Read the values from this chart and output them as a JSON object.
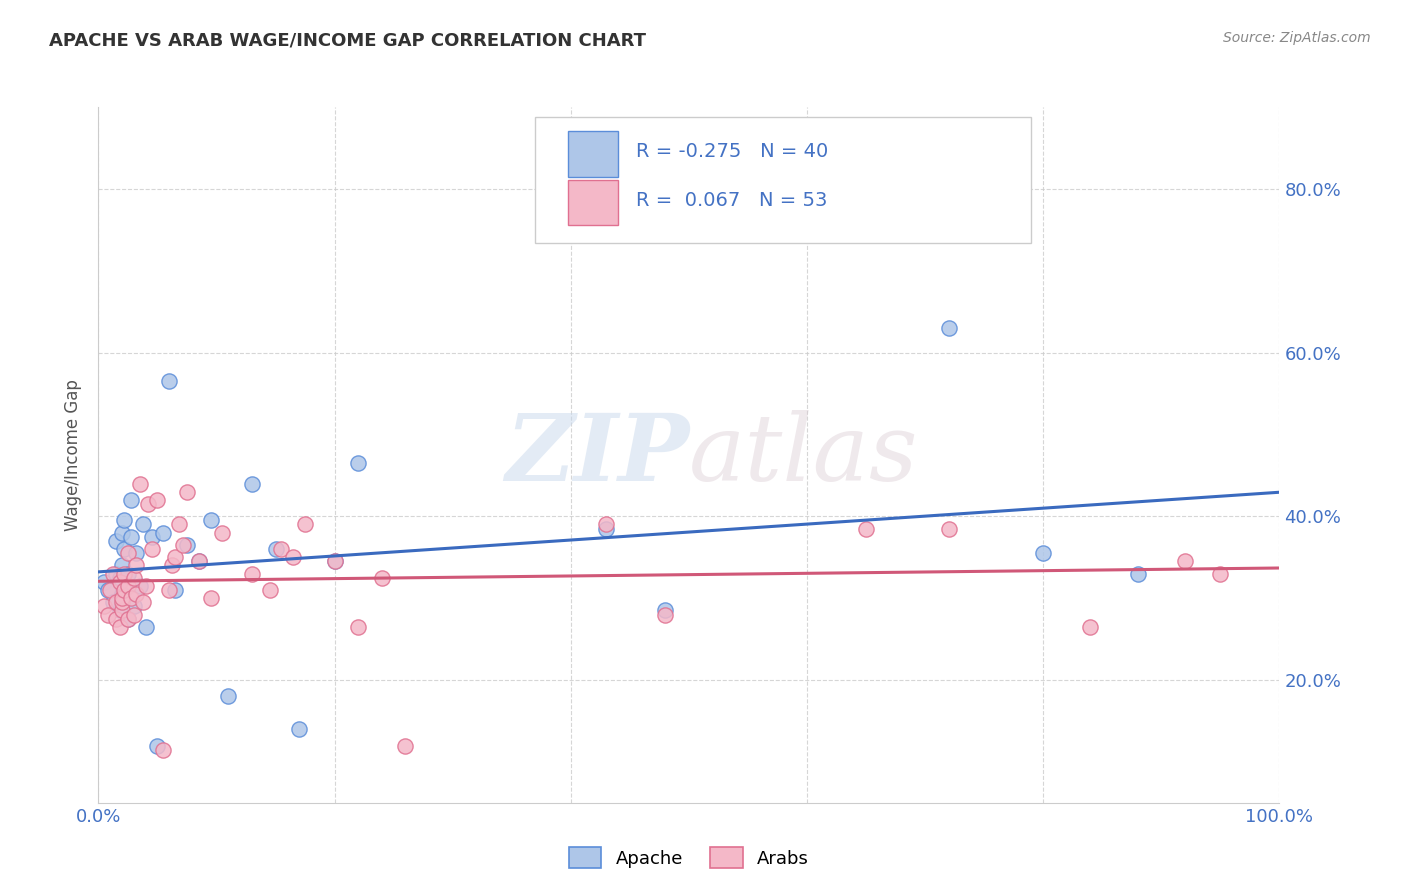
{
  "title": "APACHE VS ARAB WAGE/INCOME GAP CORRELATION CHART",
  "source": "Source: ZipAtlas.com",
  "ylabel": "Wage/Income Gap",
  "xlim": [
    0,
    1
  ],
  "ylim": [
    0.05,
    0.9
  ],
  "xticks": [
    0.0,
    0.2,
    0.4,
    0.6,
    0.8,
    1.0
  ],
  "yticks": [
    0.2,
    0.4,
    0.6,
    0.8
  ],
  "xtick_labels": [
    "0.0%",
    "",
    "",
    "",
    "",
    "100.0%"
  ],
  "ytick_labels": [
    "20.0%",
    "40.0%",
    "60.0%",
    "80.0%"
  ],
  "apache_color": "#aec6e8",
  "arab_color": "#f4b8c8",
  "apache_edge_color": "#5b8dd9",
  "arab_edge_color": "#e07090",
  "apache_line_color": "#3a6abf",
  "arab_line_color": "#d05878",
  "tick_label_color": "#4472c4",
  "title_color": "#333333",
  "source_color": "#888888",
  "legend_text_color": "#4472c4",
  "background_color": "#ffffff",
  "grid_color": "#cccccc",
  "watermark_color": "#d8e4f0",
  "apache_R": -0.275,
  "apache_N": 40,
  "arab_R": 0.067,
  "arab_N": 53,
  "apache_x": [
    0.005,
    0.008,
    0.012,
    0.015,
    0.015,
    0.018,
    0.018,
    0.02,
    0.02,
    0.02,
    0.022,
    0.022,
    0.025,
    0.025,
    0.028,
    0.028,
    0.03,
    0.032,
    0.035,
    0.038,
    0.04,
    0.045,
    0.05,
    0.055,
    0.06,
    0.065,
    0.075,
    0.085,
    0.095,
    0.11,
    0.13,
    0.15,
    0.17,
    0.2,
    0.22,
    0.43,
    0.48,
    0.72,
    0.8,
    0.88
  ],
  "apache_y": [
    0.32,
    0.31,
    0.295,
    0.33,
    0.37,
    0.285,
    0.325,
    0.305,
    0.34,
    0.38,
    0.36,
    0.395,
    0.275,
    0.33,
    0.375,
    0.42,
    0.29,
    0.355,
    0.315,
    0.39,
    0.265,
    0.375,
    0.12,
    0.38,
    0.565,
    0.31,
    0.365,
    0.345,
    0.395,
    0.18,
    0.44,
    0.36,
    0.14,
    0.345,
    0.465,
    0.385,
    0.285,
    0.63,
    0.355,
    0.33
  ],
  "arab_x": [
    0.005,
    0.008,
    0.01,
    0.012,
    0.015,
    0.015,
    0.018,
    0.018,
    0.02,
    0.02,
    0.02,
    0.022,
    0.022,
    0.025,
    0.025,
    0.025,
    0.028,
    0.03,
    0.03,
    0.032,
    0.032,
    0.035,
    0.038,
    0.04,
    0.042,
    0.045,
    0.05,
    0.055,
    0.06,
    0.062,
    0.065,
    0.068,
    0.072,
    0.075,
    0.085,
    0.095,
    0.105,
    0.13,
    0.145,
    0.155,
    0.165,
    0.175,
    0.2,
    0.22,
    0.24,
    0.26,
    0.43,
    0.48,
    0.65,
    0.72,
    0.84,
    0.92,
    0.95
  ],
  "arab_y": [
    0.29,
    0.28,
    0.31,
    0.33,
    0.295,
    0.275,
    0.32,
    0.265,
    0.285,
    0.295,
    0.3,
    0.31,
    0.33,
    0.275,
    0.315,
    0.355,
    0.3,
    0.28,
    0.325,
    0.305,
    0.34,
    0.44,
    0.295,
    0.315,
    0.415,
    0.36,
    0.42,
    0.115,
    0.31,
    0.34,
    0.35,
    0.39,
    0.365,
    0.43,
    0.345,
    0.3,
    0.38,
    0.33,
    0.31,
    0.36,
    0.35,
    0.39,
    0.345,
    0.265,
    0.325,
    0.12,
    0.39,
    0.28,
    0.385,
    0.385,
    0.265,
    0.345,
    0.33
  ]
}
